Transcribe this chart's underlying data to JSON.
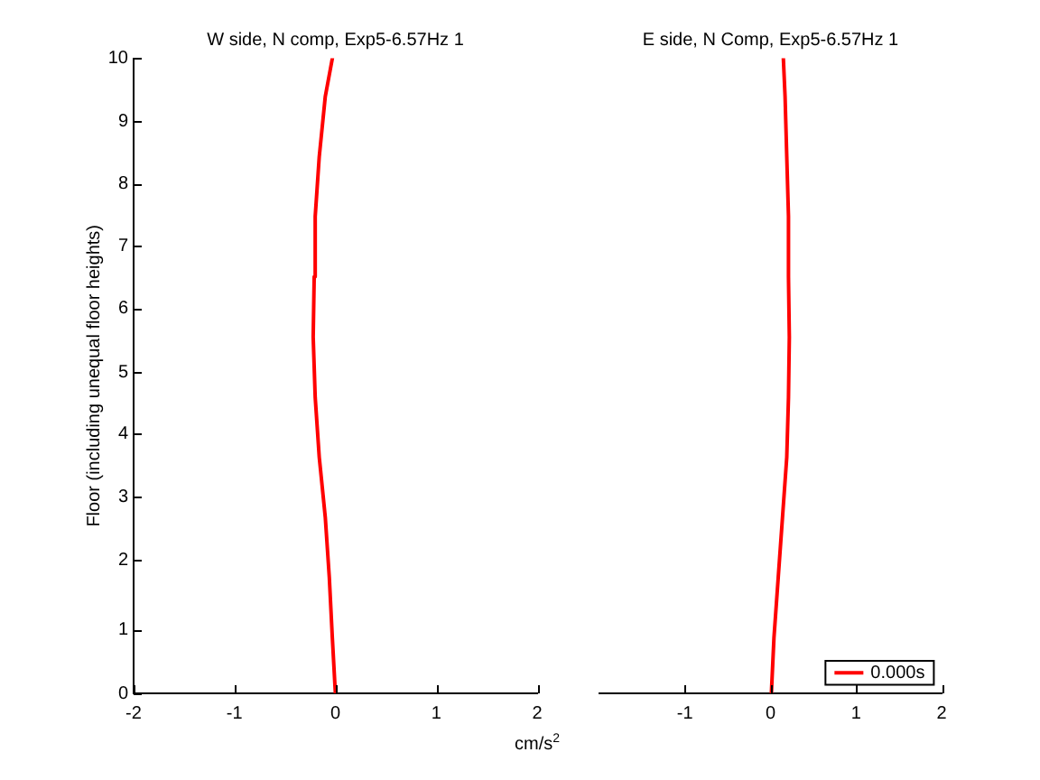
{
  "chart_data": [
    {
      "type": "line",
      "title": "W side, N comp, Exp5-6.57Hz 1",
      "xlabel": "cm/s$^{2}$",
      "ylabel": "Floor (including unequal floor heights)",
      "xlim": [
        -2,
        2
      ],
      "xticks": [
        -2,
        -1,
        0,
        1,
        2
      ],
      "ylim": [
        0,
        10
      ],
      "yticks": [
        0,
        1,
        {
          "value": 2.1,
          "label": "2"
        },
        {
          "value": 3.09,
          "label": "3"
        },
        {
          "value": 4.09,
          "label": "4"
        },
        {
          "value": 5.06,
          "label": "5"
        },
        {
          "value": 6.06,
          "label": "6"
        },
        {
          "value": 7.04,
          "label": "7"
        },
        {
          "value": 8.03,
          "label": "8"
        },
        9,
        10
      ],
      "series": [
        {
          "color": "#ff0000",
          "x": [
            0,
            -0.03,
            -0.06,
            -0.1,
            -0.16,
            -0.2,
            -0.22,
            -0.21,
            -0.2,
            -0.16,
            -0.1,
            -0.03
          ],
          "values": [
            0,
            0.87,
            1.82,
            2.77,
            3.72,
            4.66,
            5.61,
            6.56,
            7.51,
            8.45,
            9.4,
            10
          ]
        }
      ]
    },
    {
      "type": "line",
      "title": "E side, N Comp, Exp5-6.57Hz 1",
      "xlim": [
        -2,
        2
      ],
      "xticks": [
        -1,
        0,
        1,
        2
      ],
      "ylim": [
        0,
        10
      ],
      "tick_labels": "x",
      "legend": "bottom right",
      "series": [
        {
          "name": "0.000s",
          "color": "#ff0000",
          "x": [
            0.01,
            0.04,
            0.09,
            0.14,
            0.19,
            0.21,
            0.22,
            0.21,
            0.21,
            0.19,
            0.17,
            0.15
          ],
          "values": [
            0,
            0.87,
            1.82,
            2.77,
            3.72,
            4.66,
            5.61,
            6.56,
            7.51,
            8.45,
            9.4,
            10
          ]
        }
      ]
    }
  ]
}
